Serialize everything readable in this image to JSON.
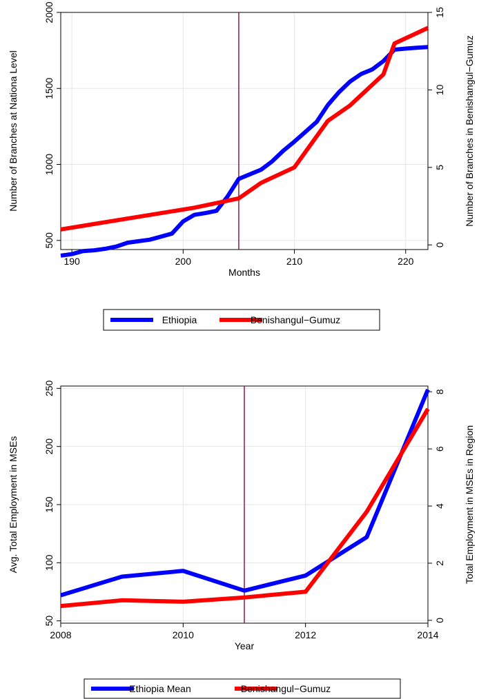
{
  "chart_data": [
    {
      "type": "line",
      "xlabel": "Months",
      "ylabel": "Number of Branches at Nationa Level",
      "y2label": "Number of Branches in Benishangul−Gumuz",
      "xlim": [
        189,
        222
      ],
      "ylim": [
        440,
        2000
      ],
      "y2lim": [
        -0.3,
        15.0
      ],
      "xticks": [
        "190",
        "200",
        "210",
        "220"
      ],
      "yticks": [
        "500",
        "1000",
        "1500",
        "2000"
      ],
      "y2ticks": [
        "0",
        "5",
        "10",
        "15"
      ],
      "grid": true,
      "vline_x": 205,
      "legend_position": "bottom",
      "colors": {
        "vline": "#8b1a4a",
        "grid": "#e6e6e6"
      },
      "series": [
        {
          "name": "Ethiopia",
          "axis": "left",
          "color": "#0000ff",
          "x": [
            189,
            190,
            191,
            192,
            193,
            194,
            195,
            196,
            197,
            198,
            199,
            200,
            201,
            202,
            203,
            204,
            205,
            206,
            207,
            208,
            209,
            210,
            211,
            212,
            213,
            214,
            215,
            216,
            217,
            218,
            219,
            220,
            221,
            222
          ],
          "values": [
            400,
            410,
            430,
            435,
            445,
            460,
            485,
            495,
            505,
            525,
            545,
            625,
            668,
            680,
            695,
            790,
            905,
            935,
            965,
            1020,
            1090,
            1150,
            1215,
            1280,
            1390,
            1475,
            1545,
            1595,
            1625,
            1680,
            1755,
            1762,
            1768,
            1772
          ]
        },
        {
          "name": "Benishangul−Gumuz",
          "axis": "right",
          "color": "#ff0000",
          "x": [
            189,
            201,
            205,
            207,
            210,
            213,
            215,
            218,
            219,
            222
          ],
          "values": [
            1,
            2.4,
            3,
            4,
            5,
            8,
            9,
            11,
            13,
            14
          ]
        }
      ]
    },
    {
      "type": "line",
      "xlabel": "Year",
      "ylabel": "Avg. Total Employment in MSEs",
      "y2label": "Total Employment in MSEs in Region",
      "xlim": [
        2008,
        2014
      ],
      "ylim": [
        48,
        252
      ],
      "y2lim": [
        -0.1,
        8.2
      ],
      "xticks": [
        "2008",
        "2010",
        "2012",
        "2014"
      ],
      "yticks": [
        "50",
        "100",
        "150",
        "200",
        "250"
      ],
      "y2ticks": [
        "0",
        "2",
        "4",
        "6",
        "8"
      ],
      "grid": true,
      "vline_x": 2011,
      "legend_position": "bottom",
      "colors": {
        "vline": "#8b1a4a",
        "grid": "#e6e6e6"
      },
      "series": [
        {
          "name": "Ethiopia Mean",
          "axis": "left",
          "color": "#0000ff",
          "x": [
            2008,
            2009,
            2010,
            2011,
            2012,
            2013,
            2014
          ],
          "values": [
            72,
            88,
            93,
            76,
            89,
            122,
            249
          ]
        },
        {
          "name": "Benishangul−Gumuz",
          "axis": "right",
          "color": "#ff0000",
          "x": [
            2008,
            2009,
            2010,
            2011,
            2012,
            2013,
            2014
          ],
          "values": [
            0.5,
            0.7,
            0.65,
            0.8,
            1.0,
            3.8,
            7.4
          ]
        }
      ]
    }
  ]
}
